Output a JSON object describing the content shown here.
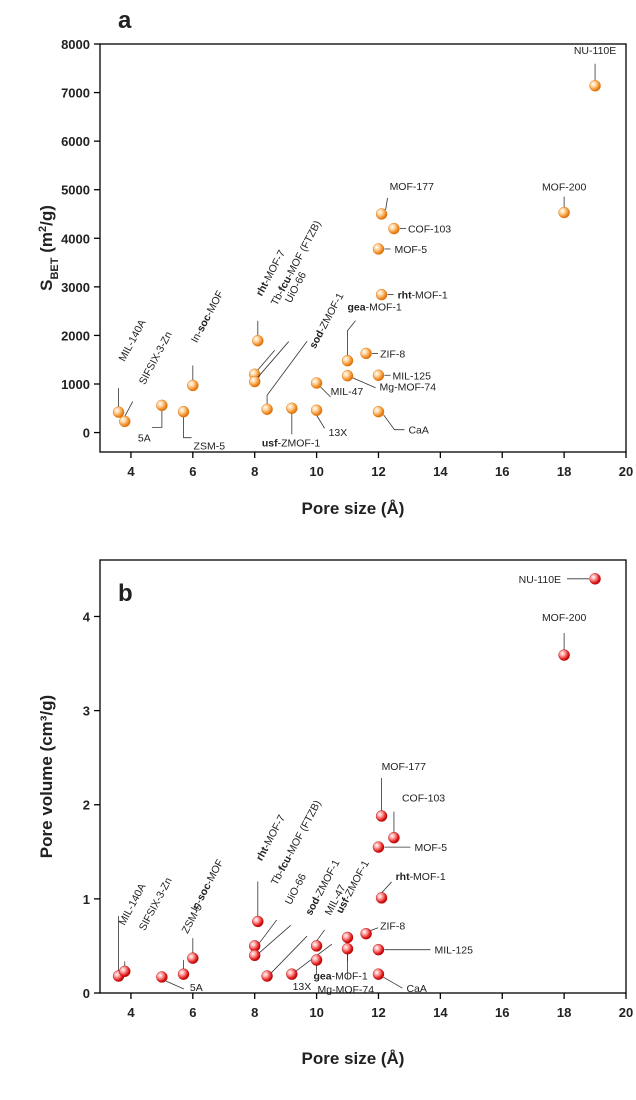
{
  "chart_data": [
    {
      "type": "scatter",
      "panel": "a",
      "xlabel": "Pore size (Å)",
      "ylabel": "S_BET (m²/g)",
      "xlim": [
        3,
        20
      ],
      "ylim": [
        -400,
        8000
      ],
      "xticks": [
        4,
        6,
        8,
        10,
        12,
        14,
        16,
        18,
        20
      ],
      "yticks": [
        0,
        1000,
        2000,
        3000,
        4000,
        5000,
        6000,
        7000,
        8000
      ],
      "point_color": "#f08a24",
      "points": [
        {
          "x": 3.6,
          "y": 420,
          "label": "MIL-140A",
          "bold": ""
        },
        {
          "x": 3.8,
          "y": 230,
          "label": "SIFSIX-3-Zn",
          "bold": ""
        },
        {
          "x": 5.0,
          "y": 560,
          "label": "5A",
          "bold": ""
        },
        {
          "x": 5.7,
          "y": 430,
          "label": "ZSM-5",
          "bold": ""
        },
        {
          "x": 6.0,
          "y": 970,
          "label": "-MOF",
          "bold": "soc",
          "prefix": "In-"
        },
        {
          "x": 8.1,
          "y": 1890,
          "label": "-MOF-7",
          "bold": "rht"
        },
        {
          "x": 8.0,
          "y": 1200,
          "label": "-MOF (FTZB)",
          "bold": "fcu",
          "prefix": "Tb-"
        },
        {
          "x": 8.0,
          "y": 1050,
          "label": "UiO-66",
          "bold": ""
        },
        {
          "x": 8.4,
          "y": 480,
          "label": "-ZMOF-1",
          "bold": "sod"
        },
        {
          "x": 9.2,
          "y": 500,
          "label": "-ZMOF-1",
          "bold": "usf"
        },
        {
          "x": 10.0,
          "y": 460,
          "label": "13X",
          "bold": ""
        },
        {
          "x": 10.0,
          "y": 1020,
          "label": "MIL-47",
          "bold": ""
        },
        {
          "x": 11.0,
          "y": 1480,
          "label": "-MOF-1",
          "bold": "gea"
        },
        {
          "x": 11.0,
          "y": 1170,
          "label": "Mg-MOF-74",
          "bold": ""
        },
        {
          "x": 11.6,
          "y": 1630,
          "label": "ZIF-8",
          "bold": ""
        },
        {
          "x": 12.0,
          "y": 430,
          "label": "CaA",
          "bold": ""
        },
        {
          "x": 12.0,
          "y": 1180,
          "label": "MIL-125",
          "bold": ""
        },
        {
          "x": 12.0,
          "y": 3780,
          "label": "MOF-5",
          "bold": ""
        },
        {
          "x": 12.1,
          "y": 2840,
          "label": "-MOF-1",
          "bold": "rht"
        },
        {
          "x": 12.1,
          "y": 4500,
          "label": "MOF-177",
          "bold": ""
        },
        {
          "x": 12.5,
          "y": 4200,
          "label": "COF-103",
          "bold": ""
        },
        {
          "x": 18.0,
          "y": 4530,
          "label": "MOF-200",
          "bold": ""
        },
        {
          "x": 19.0,
          "y": 7140,
          "label": "NU-110E",
          "bold": ""
        }
      ]
    },
    {
      "type": "scatter",
      "panel": "b",
      "xlabel": "Pore size (Å)",
      "ylabel": "Pore volume (cm³/g)",
      "xlim": [
        3,
        20
      ],
      "ylim": [
        0,
        4.6
      ],
      "xticks": [
        4,
        6,
        8,
        10,
        12,
        14,
        16,
        18,
        20
      ],
      "yticks": [
        0,
        1,
        2,
        3,
        4
      ],
      "point_color": "#e01a1a",
      "points": [
        {
          "x": 3.6,
          "y": 0.18,
          "label": "MIL-140A",
          "bold": ""
        },
        {
          "x": 3.8,
          "y": 0.23,
          "label": "SIFSIX-3-Zn",
          "bold": ""
        },
        {
          "x": 5.0,
          "y": 0.17,
          "label": "5A",
          "bold": ""
        },
        {
          "x": 5.7,
          "y": 0.2,
          "label": "ZSM-5",
          "bold": ""
        },
        {
          "x": 6.0,
          "y": 0.37,
          "label": "-MOF",
          "bold": "soc",
          "prefix": "In-"
        },
        {
          "x": 8.1,
          "y": 0.76,
          "label": "-MOF-7",
          "bold": "rht"
        },
        {
          "x": 8.0,
          "y": 0.5,
          "label": "-MOF (FTZB)",
          "bold": "fcu",
          "prefix": "Tb-"
        },
        {
          "x": 8.0,
          "y": 0.4,
          "label": "UiO-66",
          "bold": ""
        },
        {
          "x": 8.4,
          "y": 0.18,
          "label": "-ZMOF-1",
          "bold": "sod"
        },
        {
          "x": 9.2,
          "y": 0.2,
          "label": "-ZMOF-1",
          "bold": "usf"
        },
        {
          "x": 10.0,
          "y": 0.5,
          "label": "MIL-47",
          "bold": ""
        },
        {
          "x": 10.0,
          "y": 0.35,
          "label": "13X",
          "bold": ""
        },
        {
          "x": 11.0,
          "y": 0.59,
          "label": "-MOF-1",
          "bold": "gea"
        },
        {
          "x": 11.0,
          "y": 0.47,
          "label": "Mg-MOF-74",
          "bold": ""
        },
        {
          "x": 11.6,
          "y": 0.63,
          "label": "ZIF-8",
          "bold": ""
        },
        {
          "x": 12.0,
          "y": 0.2,
          "label": "CaA",
          "bold": ""
        },
        {
          "x": 12.0,
          "y": 0.46,
          "label": "MIL-125",
          "bold": ""
        },
        {
          "x": 12.0,
          "y": 1.55,
          "label": "MOF-5",
          "bold": ""
        },
        {
          "x": 12.1,
          "y": 1.01,
          "label": "-MOF-1",
          "bold": "rht"
        },
        {
          "x": 12.1,
          "y": 1.88,
          "label": "MOF-177",
          "bold": ""
        },
        {
          "x": 12.5,
          "y": 1.65,
          "label": "COF-103",
          "bold": ""
        },
        {
          "x": 18.0,
          "y": 3.59,
          "label": "MOF-200",
          "bold": ""
        },
        {
          "x": 19.0,
          "y": 4.4,
          "label": "NU-110E",
          "bold": ""
        }
      ]
    }
  ]
}
